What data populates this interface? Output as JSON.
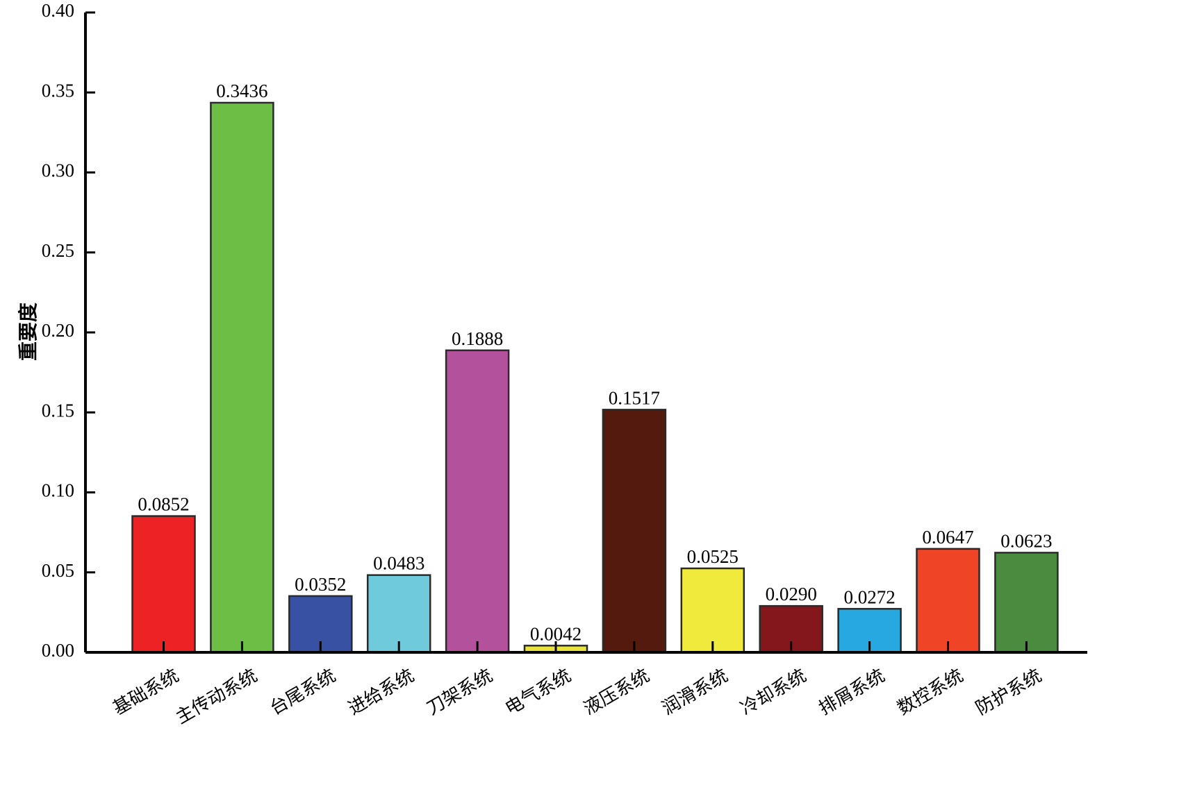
{
  "chart_data": {
    "type": "bar",
    "title": "",
    "xlabel": "",
    "ylabel": "重要度",
    "ylim": [
      0,
      0.4
    ],
    "yticks": [
      "0.00",
      "0.05",
      "0.10",
      "0.15",
      "0.20",
      "0.25",
      "0.30",
      "0.35",
      "0.40"
    ],
    "categories": [
      "基础系统",
      "主传动系统",
      "台尾系统",
      "进给系统",
      "刀架系统",
      "电气系统",
      "液压系统",
      "润滑系统",
      "冷却系统",
      "排屑系统",
      "数控系统",
      "防护系统"
    ],
    "values": [
      0.0852,
      0.3436,
      0.0352,
      0.0483,
      0.1888,
      0.0042,
      0.1517,
      0.0525,
      0.029,
      0.0272,
      0.0647,
      0.0623
    ],
    "value_labels": [
      "0.0852",
      "0.3436",
      "0.0352",
      "0.0483",
      "0.1888",
      "0.0042",
      "0.1517",
      "0.0525",
      "0.0290",
      "0.0272",
      "0.0647",
      "0.0623"
    ],
    "colors": [
      "#ed2224",
      "#6dbe45",
      "#3851a3",
      "#6fcbdc",
      "#b4519c",
      "#e8e33d",
      "#531a0d",
      "#efea3c",
      "#84171b",
      "#27a8e0",
      "#ef4426",
      "#4b8b3f"
    ],
    "grid": false
  }
}
